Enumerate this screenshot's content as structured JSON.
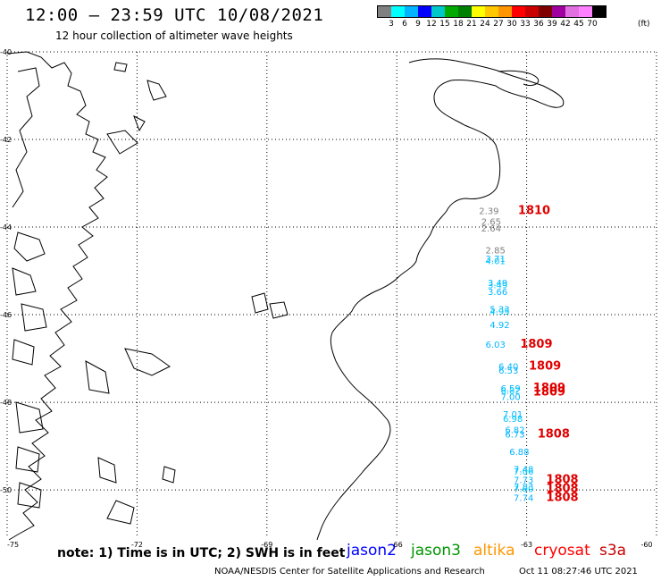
{
  "header": {
    "title": "12:00 – 23:59 UTC 10/08/2021",
    "subtitle": "12 hour collection of altimeter wave heights"
  },
  "legend": {
    "unit": "(ft)",
    "colors": [
      "#808080",
      "#00ffff",
      "#00b4ff",
      "#0000ff",
      "#00c8c8",
      "#00aa00",
      "#008000",
      "#ffff00",
      "#ffc800",
      "#ff9600",
      "#ff0000",
      "#c80000",
      "#800000",
      "#a000a0",
      "#e070e0",
      "#ff80ff",
      "#000000"
    ],
    "labels": [
      "3",
      "6",
      "9",
      "12",
      "15",
      "18",
      "21",
      "24",
      "27",
      "30",
      "33",
      "36",
      "39",
      "42",
      "45",
      "70"
    ]
  },
  "axes": {
    "lat_labels": [
      "-40",
      "-42",
      "-44",
      "-46",
      "-48",
      "-50"
    ],
    "lon_labels": [
      "-75",
      "-72",
      "-69",
      "-66",
      "-63",
      "-60"
    ]
  },
  "observations": [
    {
      "lat": -43.7,
      "lon": -64.1,
      "value": "2.39",
      "color": "#808080"
    },
    {
      "lat": -43.95,
      "lon": -64.05,
      "value": "2.65",
      "color": "#808080"
    },
    {
      "lat": -44.1,
      "lon": -64.05,
      "value": "2.64",
      "color": "#808080"
    },
    {
      "lat": -44.6,
      "lon": -63.95,
      "value": "2.85",
      "color": "#808080"
    },
    {
      "lat": -44.8,
      "lon": -63.95,
      "value": "3.71",
      "color": "#00b4ff"
    },
    {
      "lat": -44.85,
      "lon": -63.95,
      "value": "4.01",
      "color": "#00c8ff"
    },
    {
      "lat": -45.35,
      "lon": -63.9,
      "value": "3.49",
      "color": "#00b4ff"
    },
    {
      "lat": -45.4,
      "lon": -63.9,
      "value": "3.49",
      "color": "#00c8ff"
    },
    {
      "lat": -45.55,
      "lon": -63.9,
      "value": "3.66",
      "color": "#00b4ff"
    },
    {
      "lat": -45.95,
      "lon": -63.85,
      "value": "5.33",
      "color": "#00b4ff"
    },
    {
      "lat": -46.0,
      "lon": -63.85,
      "value": "4.95",
      "color": "#00c8ff"
    },
    {
      "lat": -46.3,
      "lon": -63.85,
      "value": "4.92",
      "color": "#00b4ff"
    },
    {
      "lat": -46.75,
      "lon": -63.95,
      "value": "6.03",
      "color": "#00b4ff"
    },
    {
      "lat": -47.25,
      "lon": -63.65,
      "value": "6.40",
      "color": "#00b4ff"
    },
    {
      "lat": -47.35,
      "lon": -63.65,
      "value": "6.53",
      "color": "#00b4ff"
    },
    {
      "lat": -47.75,
      "lon": -63.6,
      "value": "6.59",
      "color": "#00b4ff"
    },
    {
      "lat": -47.8,
      "lon": -63.6,
      "value": "6.82",
      "color": "#00c8ff"
    },
    {
      "lat": -47.95,
      "lon": -63.6,
      "value": "7.00",
      "color": "#00b4ff"
    },
    {
      "lat": -48.35,
      "lon": -63.55,
      "value": "7.01",
      "color": "#00b4ff"
    },
    {
      "lat": -48.45,
      "lon": -63.55,
      "value": "6.98",
      "color": "#00c8ff"
    },
    {
      "lat": -48.7,
      "lon": -63.5,
      "value": "6.82",
      "color": "#00b4ff"
    },
    {
      "lat": -48.8,
      "lon": -63.5,
      "value": "6.73",
      "color": "#00b4ff"
    },
    {
      "lat": -49.2,
      "lon": -63.4,
      "value": "6.88",
      "color": "#00b4ff"
    },
    {
      "lat": -49.6,
      "lon": -63.3,
      "value": "7.48",
      "color": "#00b4ff"
    },
    {
      "lat": -49.65,
      "lon": -63.3,
      "value": "7.06",
      "color": "#00c8ff"
    },
    {
      "lat": -49.85,
      "lon": -63.3,
      "value": "7.73",
      "color": "#00b4ff"
    },
    {
      "lat": -50.0,
      "lon": -63.3,
      "value": "7.83",
      "color": "#00b4ff"
    },
    {
      "lat": -50.05,
      "lon": -63.3,
      "value": "7.69",
      "color": "#00c8ff"
    },
    {
      "lat": -50.25,
      "lon": -63.3,
      "value": "7.74",
      "color": "#00b4ff"
    }
  ],
  "time_stamps": [
    {
      "lat": -43.7,
      "lon": -63.2,
      "value": "1810"
    },
    {
      "lat": -46.75,
      "lon": -63.15,
      "value": "1809"
    },
    {
      "lat": -47.25,
      "lon": -62.95,
      "value": "1809"
    },
    {
      "lat": -47.75,
      "lon": -62.85,
      "value": "1809"
    },
    {
      "lat": -47.85,
      "lon": -62.85,
      "value": "1809"
    },
    {
      "lat": -48.8,
      "lon": -62.75,
      "value": "1808"
    },
    {
      "lat": -49.85,
      "lon": -62.55,
      "value": "1808"
    },
    {
      "lat": -50.05,
      "lon": -62.55,
      "value": "1808"
    },
    {
      "lat": -50.25,
      "lon": -62.55,
      "value": "1808"
    }
  ],
  "footer": {
    "note": "note: 1) Time is in UTC; 2) SWH is in feet",
    "satellites": [
      {
        "name": "jason2",
        "color": "#0000ff"
      },
      {
        "name": "jason3",
        "color": "#009600"
      },
      {
        "name": "altika",
        "color": "#ff9600"
      },
      {
        "name": "cryosat",
        "color": "#ff0000"
      },
      {
        "name": "s3a",
        "color": "#c80000"
      }
    ],
    "credit": "NOAA/NESDIS Center for Satellite Applications and Research",
    "timestamp": "Oct 11 08:27:46 UTC 2021"
  }
}
